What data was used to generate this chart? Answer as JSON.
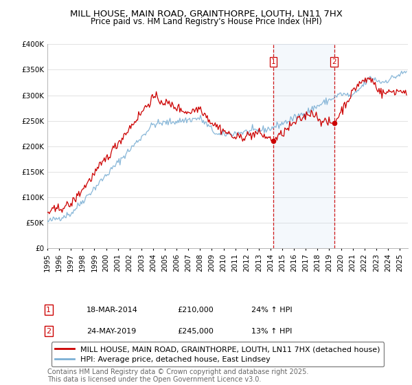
{
  "title": "MILL HOUSE, MAIN ROAD, GRAINTHORPE, LOUTH, LN11 7HX",
  "subtitle": "Price paid vs. HM Land Registry's House Price Index (HPI)",
  "legend_label_red": "MILL HOUSE, MAIN ROAD, GRAINTHORPE, LOUTH, LN11 7HX (detached house)",
  "legend_label_blue": "HPI: Average price, detached house, East Lindsey",
  "transaction1_label": "1",
  "transaction1_date": "18-MAR-2014",
  "transaction1_price": "£210,000",
  "transaction1_hpi": "24% ↑ HPI",
  "transaction2_label": "2",
  "transaction2_date": "24-MAY-2019",
  "transaction2_price": "£245,000",
  "transaction2_hpi": "13% ↑ HPI",
  "footnote": "Contains HM Land Registry data © Crown copyright and database right 2025.\nThis data is licensed under the Open Government Licence v3.0.",
  "vline1_x": 2014.25,
  "vline2_x": 2019.42,
  "marker1_red_x": 2014.25,
  "marker1_red_y": 210000,
  "marker2_red_x": 2019.42,
  "marker2_red_y": 245000,
  "ylim": [
    0,
    400000
  ],
  "xlim": [
    1995.0,
    2025.7
  ],
  "red_color": "#cc0000",
  "blue_color": "#7bafd4",
  "vline_color": "#cc0000",
  "background_color": "#ffffff",
  "grid_color": "#dddddd",
  "title_fontsize": 9.5,
  "subtitle_fontsize": 8.5,
  "tick_fontsize": 7.5,
  "legend_fontsize": 8.0,
  "footnote_fontsize": 7.0,
  "annot_fontsize": 8.0
}
